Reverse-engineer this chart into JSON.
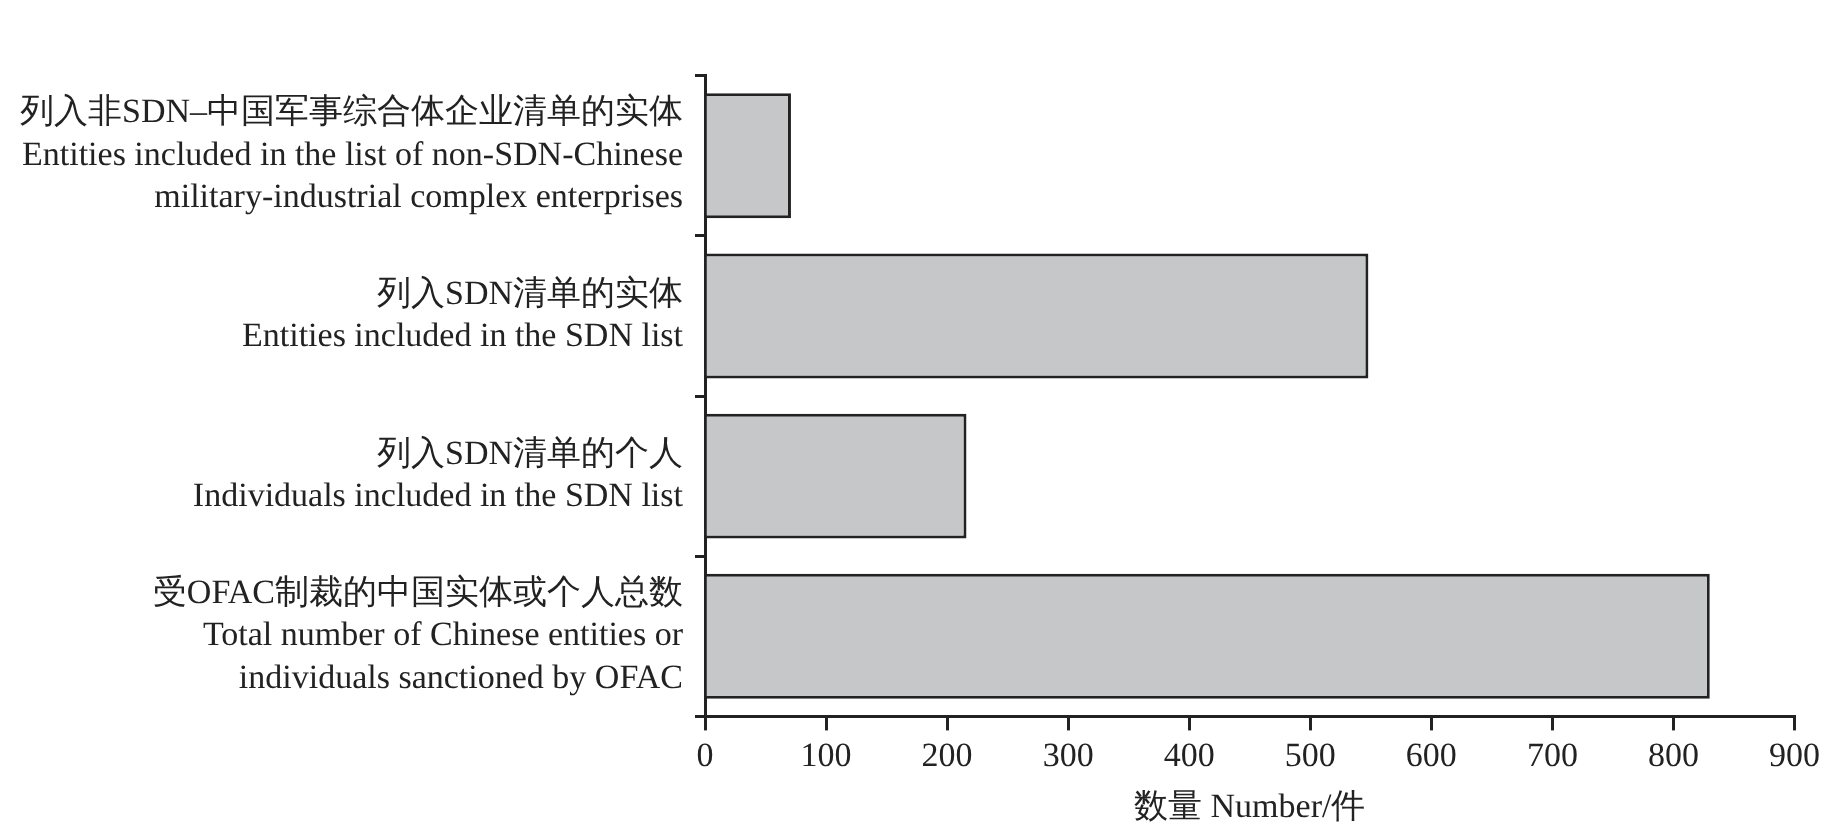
{
  "chart_data": {
    "type": "bar",
    "orientation": "horizontal",
    "categories": [
      "列入非SDN–中国军事综合体企业清单的实体\nEntities included in the list of non-SDN-Chinese\nmilitary-industrial complex enterprises",
      "列入SDN清单的实体\nEntities included in the SDN list",
      "列入SDN清单的个人\nIndividuals included in the SDN list",
      "受OFAC制裁的中国实体或个人总数\nTotal number of Chinese entities or\nindividuals sanctioned by OFAC"
    ],
    "values": [
      71,
      548,
      216,
      830
    ],
    "color": "#c6c7c9",
    "xlabel": "数量 Number/件",
    "xlim": [
      0,
      900
    ],
    "xticks": [
      0,
      100,
      200,
      300,
      400,
      500,
      600,
      700,
      800,
      900
    ],
    "grid": false,
    "legend": false
  }
}
